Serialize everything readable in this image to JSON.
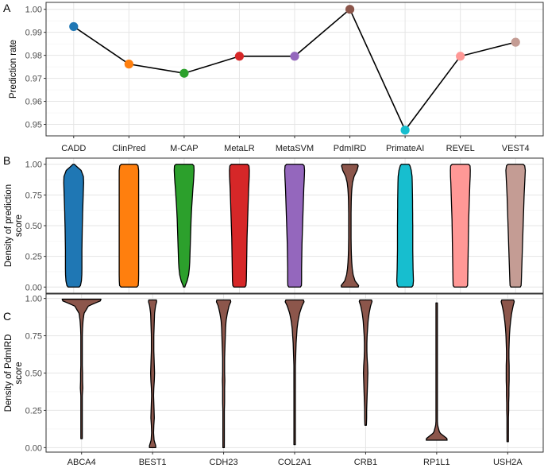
{
  "chart_data": [
    {
      "panel_label": "A",
      "type": "line",
      "ylabel": "Prediction rate",
      "xlabel": "",
      "ylim": [
        0.945,
        1.003
      ],
      "yticks": [
        0.95,
        0.96,
        0.97,
        0.98,
        0.99,
        1.0
      ],
      "ytick_labels": [
        "0.95",
        "0.96",
        "0.97",
        "0.98",
        "0.99",
        "1.00"
      ],
      "grid": true,
      "categories": [
        "CADD",
        "ClinPred",
        "M-CAP",
        "MetaLR",
        "MetaSVM",
        "PdmIRD",
        "PrimateAI",
        "REVEL",
        "VEST4"
      ],
      "values": [
        0.9925,
        0.9762,
        0.9722,
        0.9796,
        0.9796,
        1.0,
        0.9475,
        0.9796,
        0.9857
      ],
      "colors": [
        "#1f77b4",
        "#ff7f0e",
        "#2ca02c",
        "#d62728",
        "#9467bd",
        "#8c564b",
        "#17becf",
        "#ff9896",
        "#c49c94"
      ]
    },
    {
      "panel_label": "B",
      "type": "violin",
      "ylabel": "Density of prediction score",
      "xlabel": "",
      "ylim": [
        -0.05,
        1.05
      ],
      "yticks": [
        0.0,
        0.25,
        0.5,
        0.75,
        1.0
      ],
      "ytick_labels": [
        "0.00",
        "0.25",
        "0.50",
        "0.75",
        "1.00"
      ],
      "grid": true,
      "categories": [
        "CADD",
        "ClinPred",
        "M-CAP",
        "MetaLR",
        "MetaSVM",
        "PdmIRD",
        "PrimateAI",
        "REVEL",
        "VEST4"
      ],
      "colors": [
        "#1f77b4",
        "#ff7f0e",
        "#2ca02c",
        "#d62728",
        "#9467bd",
        "#8c564b",
        "#17becf",
        "#ff9896",
        "#c49c94"
      ],
      "ranges": [
        [
          0.0,
          1.0
        ],
        [
          0.0,
          1.0
        ],
        [
          0.0,
          1.0
        ],
        [
          0.0,
          1.0
        ],
        [
          0.0,
          1.0
        ],
        [
          0.0,
          1.0
        ],
        [
          0.0,
          1.0
        ],
        [
          0.0,
          1.0
        ],
        [
          0.0,
          1.0
        ]
      ],
      "density_grid": [
        0,
        0.05,
        0.1,
        0.15,
        0.2,
        0.25,
        0.3,
        0.35,
        0.4,
        0.45,
        0.5,
        0.55,
        0.6,
        0.65,
        0.7,
        0.75,
        0.8,
        0.85,
        0.9,
        0.95,
        1.0
      ],
      "density": [
        [
          0.65,
          0.78,
          0.82,
          0.83,
          0.83,
          0.83,
          0.83,
          0.84,
          0.85,
          0.86,
          0.87,
          0.89,
          0.9,
          0.92,
          0.94,
          0.96,
          0.98,
          1.0,
          0.98,
          0.75,
          0.05
        ],
        [
          0.93,
          0.97,
          0.98,
          0.98,
          0.98,
          0.98,
          0.98,
          0.98,
          0.98,
          0.98,
          0.98,
          0.98,
          0.98,
          0.98,
          0.98,
          0.98,
          0.98,
          0.98,
          0.98,
          0.98,
          0.9
        ],
        [
          0.05,
          0.3,
          0.45,
          0.52,
          0.56,
          0.58,
          0.6,
          0.62,
          0.64,
          0.66,
          0.68,
          0.7,
          0.73,
          0.76,
          0.8,
          0.84,
          0.88,
          0.93,
          0.97,
          1.0,
          0.97
        ],
        [
          0.65,
          0.7,
          0.71,
          0.72,
          0.73,
          0.74,
          0.75,
          0.76,
          0.77,
          0.79,
          0.81,
          0.83,
          0.85,
          0.87,
          0.89,
          0.91,
          0.93,
          0.96,
          0.99,
          1.0,
          0.95
        ],
        [
          0.68,
          0.7,
          0.7,
          0.7,
          0.71,
          0.72,
          0.73,
          0.74,
          0.76,
          0.78,
          0.8,
          0.82,
          0.84,
          0.86,
          0.88,
          0.9,
          0.92,
          0.95,
          0.98,
          1.0,
          0.95
        ],
        [
          1.0,
          0.52,
          0.33,
          0.24,
          0.19,
          0.16,
          0.14,
          0.13,
          0.12,
          0.12,
          0.12,
          0.12,
          0.12,
          0.13,
          0.14,
          0.16,
          0.2,
          0.27,
          0.42,
          0.72,
          0.88
        ],
        [
          0.78,
          0.84,
          0.82,
          0.8,
          0.79,
          0.78,
          0.77,
          0.77,
          0.77,
          0.77,
          0.77,
          0.76,
          0.76,
          0.75,
          0.75,
          0.74,
          0.73,
          0.72,
          0.7,
          0.62,
          0.45
        ],
        [
          0.72,
          0.74,
          0.75,
          0.76,
          0.77,
          0.78,
          0.79,
          0.8,
          0.81,
          0.82,
          0.83,
          0.84,
          0.86,
          0.88,
          0.9,
          0.92,
          0.94,
          0.96,
          0.99,
          1.0,
          0.97
        ],
        [
          0.55,
          0.58,
          0.6,
          0.62,
          0.64,
          0.66,
          0.68,
          0.7,
          0.72,
          0.74,
          0.76,
          0.78,
          0.8,
          0.82,
          0.84,
          0.86,
          0.89,
          0.92,
          0.95,
          0.98,
          0.9
        ]
      ]
    },
    {
      "panel_label": "C",
      "type": "violin",
      "ylabel": "Density of PdmIRD score",
      "xlabel": "",
      "ylim": [
        -0.03,
        1.03
      ],
      "yticks": [
        0.0,
        0.25,
        0.5,
        0.75,
        1.0
      ],
      "ytick_labels": [
        "0.00",
        "0.25",
        "0.50",
        "0.75",
        "1.00"
      ],
      "grid": true,
      "categories": [
        "ABCA4",
        "BEST1",
        "CDH23",
        "COL2A1",
        "CRB1",
        "RP1L1",
        "USH2A"
      ],
      "colors": [
        "#8c564b",
        "#8c564b",
        "#8c564b",
        "#8c564b",
        "#8c564b",
        "#8c564b",
        "#8c564b"
      ],
      "ranges": [
        [
          0.06,
          0.995
        ],
        [
          0.0,
          0.99
        ],
        [
          0.0,
          0.99
        ],
        [
          0.02,
          0.99
        ],
        [
          0.15,
          0.99
        ],
        [
          0.05,
          0.97
        ],
        [
          0.04,
          0.99
        ]
      ],
      "density_grid": [
        0,
        0.05,
        0.1,
        0.15,
        0.2,
        0.25,
        0.3,
        0.35,
        0.4,
        0.45,
        0.5,
        0.55,
        0.6,
        0.65,
        0.7,
        0.75,
        0.8,
        0.85,
        0.9,
        0.95,
        1.0
      ],
      "density": [
        [
          0.015,
          0.015,
          0.015,
          0.015,
          0.015,
          0.015,
          0.02,
          0.03,
          0.05,
          0.04,
          0.04,
          0.03,
          0.03,
          0.03,
          0.03,
          0.03,
          0.04,
          0.06,
          0.1,
          0.28,
          1.0
        ],
        [
          0.15,
          0.06,
          0.04,
          0.05,
          0.07,
          0.06,
          0.05,
          0.04,
          0.05,
          0.07,
          0.08,
          0.07,
          0.06,
          0.05,
          0.05,
          0.05,
          0.06,
          0.07,
          0.08,
          0.12,
          0.2
        ],
        [
          0.02,
          0.03,
          0.03,
          0.03,
          0.03,
          0.03,
          0.04,
          0.04,
          0.04,
          0.05,
          0.04,
          0.04,
          0.04,
          0.05,
          0.06,
          0.07,
          0.08,
          0.1,
          0.15,
          0.22,
          0.35
        ],
        [
          0.02,
          0.02,
          0.02,
          0.02,
          0.02,
          0.02,
          0.025,
          0.025,
          0.03,
          0.03,
          0.03,
          0.03,
          0.04,
          0.05,
          0.06,
          0.08,
          0.1,
          0.14,
          0.2,
          0.3,
          0.45
        ],
        [
          0.02,
          0.02,
          0.02,
          0.03,
          0.04,
          0.04,
          0.05,
          0.06,
          0.07,
          0.08,
          0.09,
          0.08,
          0.06,
          0.05,
          0.05,
          0.06,
          0.08,
          0.1,
          0.14,
          0.2,
          0.3
        ],
        [
          1.0,
          0.5,
          0.12,
          0.04,
          0.02,
          0.015,
          0.012,
          0.01,
          0.01,
          0.01,
          0.01,
          0.01,
          0.01,
          0.01,
          0.01,
          0.01,
          0.01,
          0.012,
          0.015,
          0.02,
          0.02
        ],
        [
          0.02,
          0.02,
          0.03,
          0.03,
          0.03,
          0.04,
          0.04,
          0.05,
          0.05,
          0.06,
          0.06,
          0.06,
          0.05,
          0.05,
          0.06,
          0.07,
          0.09,
          0.12,
          0.16,
          0.22,
          0.3
        ]
      ]
    }
  ]
}
